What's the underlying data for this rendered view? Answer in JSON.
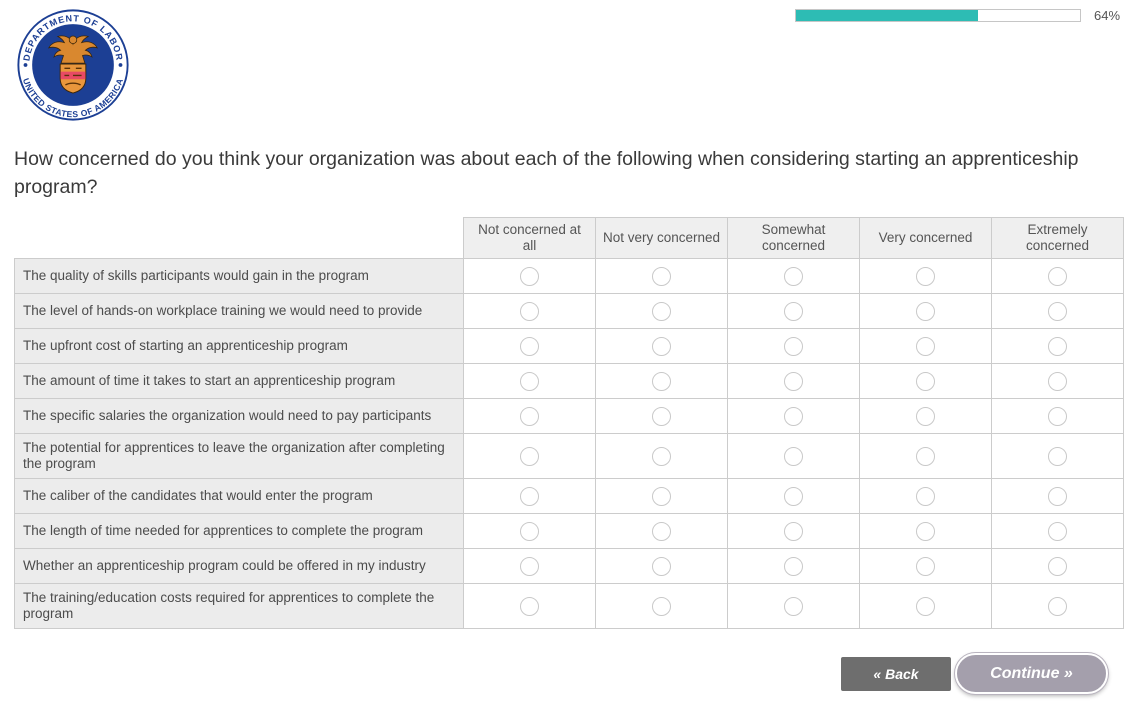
{
  "progress": {
    "percent": 64,
    "label": "64%"
  },
  "logo": {
    "name": "U.S. Department of Labor seal",
    "ring_top": "DEPARTMENT OF LABOR",
    "ring_bottom": "UNITED STATES OF AMERICA"
  },
  "question": {
    "text": "How concerned do you think your organization was about each of the following when considering starting an apprenticeship program?"
  },
  "matrix": {
    "columns": [
      "Not concerned at all",
      "Not very concerned",
      "Somewhat concerned",
      "Very concerned",
      "Extremely concerned"
    ],
    "rows": [
      "The quality of skills participants would gain in the program",
      "The level of hands-on workplace training we would need to provide",
      "The upfront cost of starting an apprenticeship program",
      "The amount of time it takes to start an apprenticeship program",
      "The specific salaries the organization would need to pay participants",
      "The potential for apprentices to leave the organization after completing the program",
      "The caliber of the candidates that would enter the program",
      "The length of time needed for apprentices to complete the program",
      "Whether an apprenticeship program could be offered in my industry",
      "The training/education costs required for apprentices to complete the program"
    ],
    "selected": null
  },
  "buttons": {
    "back": "« Back",
    "continue": "Continue »"
  },
  "colors": {
    "progress_fill": "#2dbcb4",
    "seal_navy": "#1c3f94",
    "seal_gold": "#d9882f",
    "seal_red": "#e84a64",
    "back_button_bg": "#6e6e6e",
    "continue_button_bg": "#a49fac",
    "table_border": "#cccccc",
    "label_cell_bg": "#ececec",
    "header_cell_bg": "#efefef"
  }
}
